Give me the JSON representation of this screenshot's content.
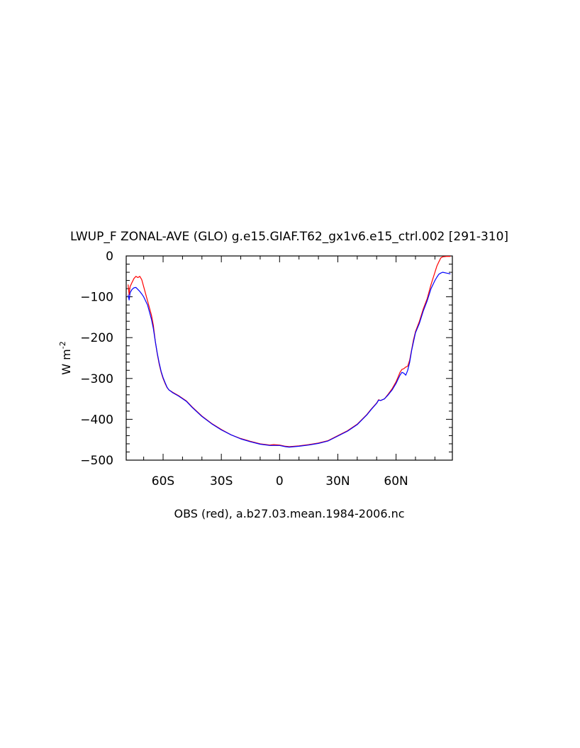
{
  "chart_data": {
    "type": "line",
    "title": "LWUP_F ZONAL-AVE (GLO) g.e15.GIAF.T62_gx1v6.e15_ctrl.002 [291-310]",
    "ylabel": "W m",
    "ylabel_superscript": "-2",
    "xlabel": "OBS (red), a.b27.03.mean.1984-2006.nc",
    "xlim": [
      -79,
      89
    ],
    "ylim": [
      -500,
      0
    ],
    "xticks": [
      {
        "value": -60,
        "label": "60S"
      },
      {
        "value": -30,
        "label": "30S"
      },
      {
        "value": 0,
        "label": "0"
      },
      {
        "value": 30,
        "label": "30N"
      },
      {
        "value": 60,
        "label": "60N"
      }
    ],
    "yticks": [
      {
        "value": 0,
        "label": "0"
      },
      {
        "value": -100,
        "label": "−100"
      },
      {
        "value": -200,
        "label": "−200"
      },
      {
        "value": -300,
        "label": "−300"
      },
      {
        "value": -400,
        "label": "−400"
      },
      {
        "value": -500,
        "label": "−500"
      }
    ],
    "grid": false,
    "series": [
      {
        "color": "#ff0000",
        "points": [
          [
            -78,
            -70
          ],
          [
            -77.5,
            -95
          ],
          [
            -77,
            -75
          ],
          [
            -76,
            -65
          ],
          [
            -75,
            -55
          ],
          [
            -74,
            -50
          ],
          [
            -73,
            -53
          ],
          [
            -72,
            -50
          ],
          [
            -71,
            -58
          ],
          [
            -70,
            -75
          ],
          [
            -68,
            -110
          ],
          [
            -66,
            -145
          ],
          [
            -65,
            -170
          ],
          [
            -64,
            -210
          ],
          [
            -63,
            -240
          ],
          [
            -62,
            -265
          ],
          [
            -61,
            -285
          ],
          [
            -60,
            -300
          ],
          [
            -59,
            -312
          ],
          [
            -58,
            -322
          ],
          [
            -57,
            -328
          ],
          [
            -55,
            -334
          ],
          [
            -52,
            -342
          ],
          [
            -48,
            -355
          ],
          [
            -45,
            -370
          ],
          [
            -40,
            -392
          ],
          [
            -35,
            -410
          ],
          [
            -30,
            -425
          ],
          [
            -25,
            -438
          ],
          [
            -20,
            -447
          ],
          [
            -15,
            -454
          ],
          [
            -10,
            -460
          ],
          [
            -5,
            -463
          ],
          [
            -3,
            -462
          ],
          [
            0,
            -463
          ],
          [
            3,
            -466
          ],
          [
            5,
            -467
          ],
          [
            10,
            -465
          ],
          [
            15,
            -462
          ],
          [
            20,
            -458
          ],
          [
            25,
            -452
          ],
          [
            30,
            -440
          ],
          [
            35,
            -428
          ],
          [
            40,
            -412
          ],
          [
            45,
            -388
          ],
          [
            47,
            -376
          ],
          [
            50,
            -360
          ],
          [
            51,
            -352
          ],
          [
            52,
            -354
          ],
          [
            54,
            -350
          ],
          [
            56,
            -338
          ],
          [
            58,
            -325
          ],
          [
            60,
            -308
          ],
          [
            61,
            -297
          ],
          [
            62,
            -285
          ],
          [
            63,
            -278
          ],
          [
            64,
            -276
          ],
          [
            65,
            -272
          ],
          [
            66,
            -270
          ],
          [
            67,
            -255
          ],
          [
            68,
            -230
          ],
          [
            69,
            -205
          ],
          [
            70,
            -185
          ],
          [
            72,
            -160
          ],
          [
            74,
            -130
          ],
          [
            76,
            -105
          ],
          [
            78,
            -70
          ],
          [
            80,
            -40
          ],
          [
            81,
            -25
          ],
          [
            82,
            -15
          ],
          [
            83,
            -5
          ],
          [
            84,
            -2
          ],
          [
            86,
            -1
          ],
          [
            88,
            -1
          ]
        ]
      },
      {
        "color": "#0000ff",
        "points": [
          [
            -78,
            -95
          ],
          [
            -77.5,
            -108
          ],
          [
            -77,
            -90
          ],
          [
            -76,
            -82
          ],
          [
            -75,
            -78
          ],
          [
            -74,
            -77
          ],
          [
            -73,
            -82
          ],
          [
            -72,
            -87
          ],
          [
            -71,
            -93
          ],
          [
            -70,
            -100
          ],
          [
            -68,
            -120
          ],
          [
            -66,
            -155
          ],
          [
            -65,
            -178
          ],
          [
            -64,
            -210
          ],
          [
            -63,
            -238
          ],
          [
            -62,
            -262
          ],
          [
            -61,
            -283
          ],
          [
            -60,
            -298
          ],
          [
            -59,
            -310
          ],
          [
            -58,
            -321
          ],
          [
            -57,
            -328
          ],
          [
            -55,
            -335
          ],
          [
            -52,
            -343
          ],
          [
            -48,
            -356
          ],
          [
            -45,
            -371
          ],
          [
            -40,
            -393
          ],
          [
            -35,
            -411
          ],
          [
            -30,
            -426
          ],
          [
            -25,
            -438
          ],
          [
            -20,
            -448
          ],
          [
            -15,
            -455
          ],
          [
            -10,
            -461
          ],
          [
            -5,
            -464
          ],
          [
            -3,
            -464
          ],
          [
            0,
            -464
          ],
          [
            3,
            -467
          ],
          [
            5,
            -468
          ],
          [
            10,
            -466
          ],
          [
            15,
            -463
          ],
          [
            20,
            -459
          ],
          [
            25,
            -453
          ],
          [
            30,
            -441
          ],
          [
            35,
            -429
          ],
          [
            40,
            -413
          ],
          [
            45,
            -389
          ],
          [
            47,
            -377
          ],
          [
            50,
            -361
          ],
          [
            51,
            -353
          ],
          [
            52,
            -354
          ],
          [
            54,
            -350
          ],
          [
            56,
            -340
          ],
          [
            58,
            -328
          ],
          [
            60,
            -312
          ],
          [
            61,
            -302
          ],
          [
            62,
            -292
          ],
          [
            63,
            -285
          ],
          [
            64,
            -287
          ],
          [
            65,
            -292
          ],
          [
            66,
            -280
          ],
          [
            67,
            -260
          ],
          [
            68,
            -232
          ],
          [
            69,
            -210
          ],
          [
            70,
            -188
          ],
          [
            72,
            -165
          ],
          [
            74,
            -135
          ],
          [
            76,
            -110
          ],
          [
            78,
            -80
          ],
          [
            80,
            -60
          ],
          [
            81,
            -52
          ],
          [
            82,
            -45
          ],
          [
            83,
            -42
          ],
          [
            84,
            -40
          ],
          [
            86,
            -42
          ],
          [
            88,
            -44
          ]
        ]
      }
    ]
  }
}
